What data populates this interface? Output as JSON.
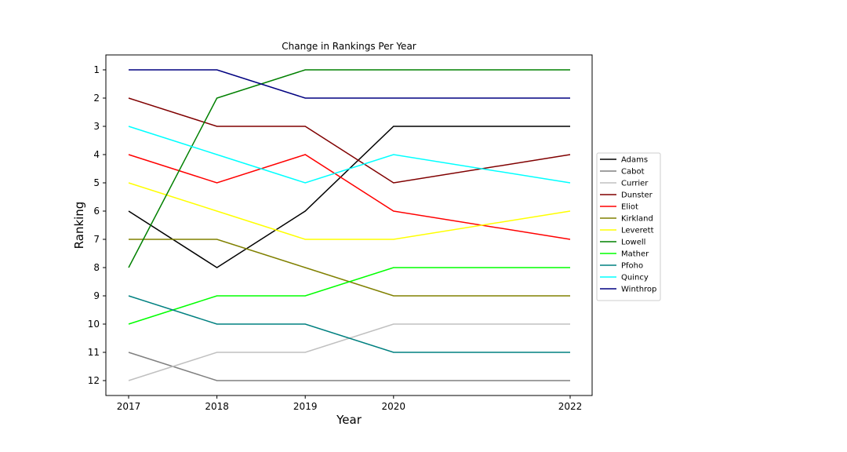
{
  "chart_data": {
    "type": "line",
    "title": "Change in Rankings Per Year",
    "xlabel": "Year",
    "ylabel": "Ranking",
    "x": [
      2017,
      2018,
      2019,
      2020,
      2022
    ],
    "xticks": [
      "2017",
      "2018",
      "2019",
      "2020",
      "2022"
    ],
    "yticks": [
      "1",
      "2",
      "3",
      "4",
      "5",
      "6",
      "7",
      "8",
      "9",
      "10",
      "11",
      "12"
    ],
    "ylim": [
      12,
      1
    ],
    "y_inverted": true,
    "grid": false,
    "legend_position": "right",
    "series": [
      {
        "name": "Adams",
        "color": "#000000",
        "values": [
          6,
          8,
          6,
          3,
          3
        ]
      },
      {
        "name": "Cabot",
        "color": "#808080",
        "values": [
          11,
          12,
          12,
          12,
          12
        ]
      },
      {
        "name": "Currier",
        "color": "#c0c0c0",
        "values": [
          12,
          11,
          11,
          10,
          10
        ]
      },
      {
        "name": "Dunster",
        "color": "#800000",
        "values": [
          2,
          3,
          3,
          5,
          4
        ]
      },
      {
        "name": "Eliot",
        "color": "#ff0000",
        "values": [
          4,
          5,
          4,
          6,
          7
        ]
      },
      {
        "name": "Kirkland",
        "color": "#808000",
        "values": [
          7,
          7,
          8,
          9,
          9
        ]
      },
      {
        "name": "Leverett",
        "color": "#ffff00",
        "values": [
          5,
          6,
          7,
          7,
          6
        ]
      },
      {
        "name": "Lowell",
        "color": "#008000",
        "values": [
          8,
          2,
          1,
          1,
          1
        ]
      },
      {
        "name": "Mather",
        "color": "#00ff00",
        "values": [
          10,
          9,
          9,
          8,
          8
        ]
      },
      {
        "name": "Pfoho",
        "color": "#008080",
        "values": [
          9,
          10,
          10,
          11,
          11
        ]
      },
      {
        "name": "Quincy",
        "color": "#00ffff",
        "values": [
          3,
          4,
          5,
          4,
          5
        ]
      },
      {
        "name": "Winthrop",
        "color": "#000080",
        "values": [
          1,
          1,
          2,
          2,
          2
        ]
      }
    ]
  }
}
